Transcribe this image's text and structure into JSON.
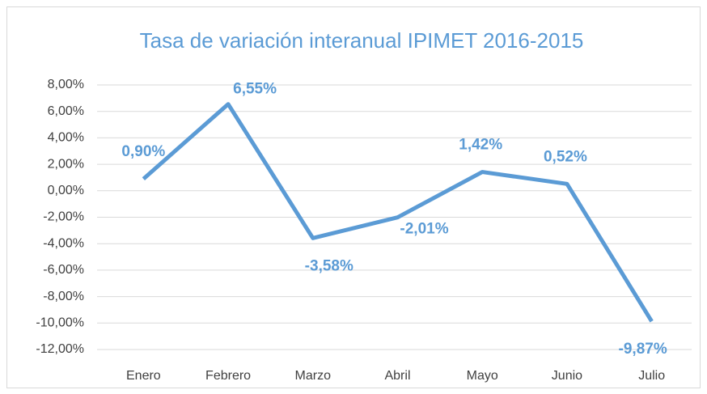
{
  "chart_data": {
    "type": "line",
    "title": "Tasa de variación interanual IPIMET 2016-2015",
    "categories": [
      "Enero",
      "Febrero",
      "Marzo",
      "Abril",
      "Mayo",
      "Junio",
      "Julio"
    ],
    "series": [
      {
        "name": "IPIMET",
        "color": "#5b9bd5",
        "values": [
          0.9,
          6.55,
          -3.58,
          -2.01,
          1.42,
          0.52,
          -9.87
        ],
        "value_labels": [
          "0,90%",
          "6,55%",
          "-3,58%",
          "-2,01%",
          "1,42%",
          "0,52%",
          "-9,87%"
        ]
      }
    ],
    "ylim": [
      -12,
      8
    ],
    "yticks": [
      {
        "value": -12,
        "label": "-12,00%"
      },
      {
        "value": -10,
        "label": "-10,00%"
      },
      {
        "value": -8,
        "label": "-8,00%"
      },
      {
        "value": -6,
        "label": "-6,00%"
      },
      {
        "value": -4,
        "label": "-4,00%"
      },
      {
        "value": -2,
        "label": "-2,00%"
      },
      {
        "value": 0,
        "label": "0,00%"
      },
      {
        "value": 2,
        "label": "2,00%"
      },
      {
        "value": 4,
        "label": "4,00%"
      },
      {
        "value": 6,
        "label": "6,00%"
      },
      {
        "value": 8,
        "label": "8,00%"
      }
    ],
    "grid": true
  }
}
